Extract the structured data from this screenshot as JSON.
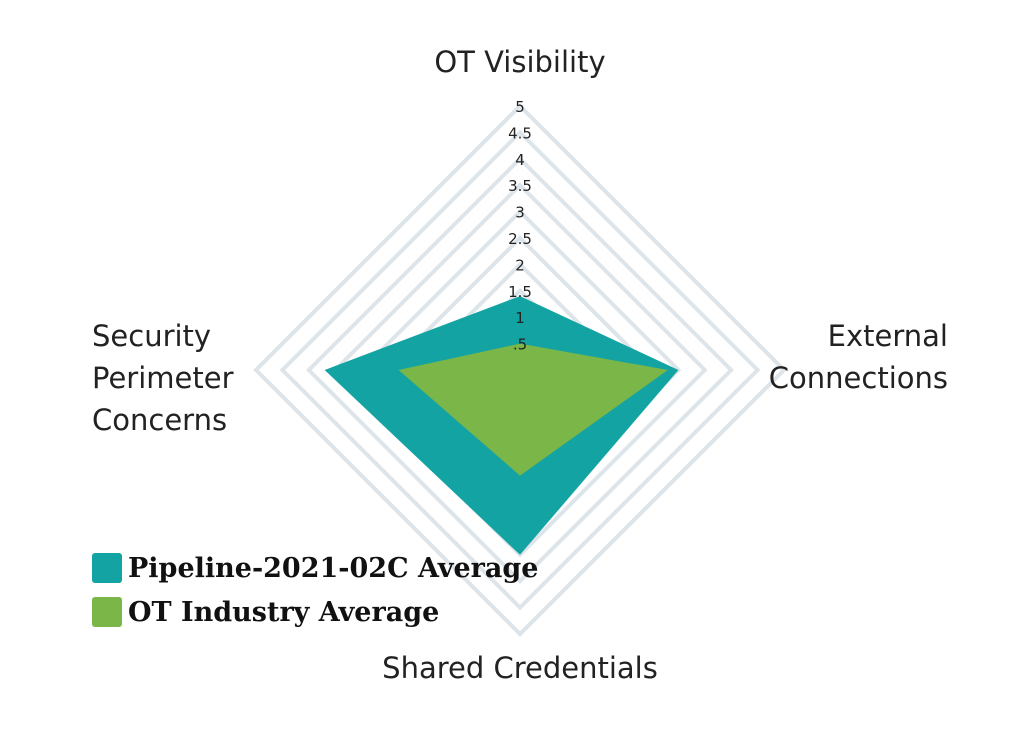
{
  "chart_data": {
    "type": "radar",
    "axes": [
      "OT Visibility",
      "External Connections",
      "Shared Credentials",
      "Security Perimeter Concerns"
    ],
    "axis_lines": {
      "OT Visibility": [
        "OT Visibility"
      ],
      "External Connections": [
        "External",
        "Connections"
      ],
      "Shared Credentials": [
        "Shared Credentials"
      ],
      "Security Perimeter Concerns": [
        "Security",
        "Perimeter",
        "Concerns"
      ]
    },
    "r_range": [
      0,
      5
    ],
    "ticks": [
      ".5",
      "1",
      "1.5",
      "2",
      "2.5",
      "3",
      "3.5",
      "4",
      "4.5",
      "5"
    ],
    "grid": true,
    "legend_position": "bottom-left",
    "series": [
      {
        "name": "Pipeline-2021-02C Average",
        "color": "#14a3a3",
        "values": [
          1.4,
          3.0,
          3.5,
          3.7
        ]
      },
      {
        "name": "OT Industry Average",
        "color": "#7ab648",
        "values": [
          0.5,
          2.8,
          2.0,
          2.3
        ]
      }
    ]
  },
  "colors": {
    "grid": "#dde5ea",
    "text": "#222222"
  }
}
